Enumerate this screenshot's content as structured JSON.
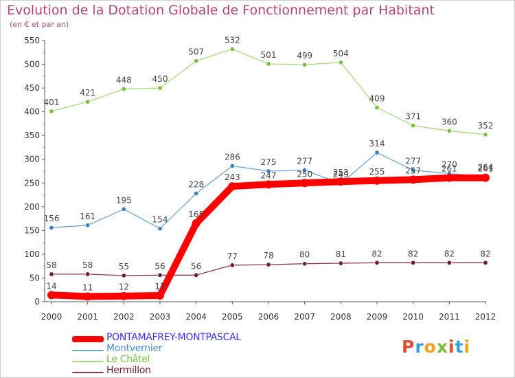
{
  "header": {
    "title": "Evolution de la Dotation Globale de Fonctionnement par Habitant",
    "subtitle": "(en € et par an)"
  },
  "logo": {
    "letters": [
      "P",
      "r",
      "o",
      "x",
      "i",
      "t",
      "i"
    ],
    "colors": [
      "#e34a2e",
      "#3a9fd8",
      "#f4a21b",
      "#7bbf3a",
      "#e34a2e",
      "#3a9fd8",
      "#f4a21b"
    ]
  },
  "chart_data": {
    "type": "line",
    "title": "Evolution de la Dotation Globale de Fonctionnement par Habitant",
    "subtitle": "(en € et par an)",
    "xlabel": "",
    "ylabel": "",
    "x": [
      "2000",
      "2001",
      "2002",
      "2003",
      "2004",
      "2005",
      "2006",
      "2007",
      "2008",
      "2009",
      "2010",
      "2011",
      "2012"
    ],
    "ylim": [
      0,
      550
    ],
    "yticks": [
      0,
      50,
      100,
      150,
      200,
      250,
      300,
      350,
      400,
      450,
      500,
      550
    ],
    "grid": false,
    "legend_position": "bottom-left",
    "series": [
      {
        "name": "PONTAMAFREY-MONTPASCAL",
        "color": "#ff0000",
        "marker": "#ff0000",
        "label_color": "#3333ff",
        "weight": "heavy",
        "values": [
          14,
          11,
          12,
          13,
          165,
          243,
          247,
          250,
          253,
          255,
          257,
          261,
          261
        ]
      },
      {
        "name": "Montvernier",
        "color": "#6aa5d8",
        "marker": "#3c82c8",
        "label_color": "#4a8fd1",
        "weight": "light",
        "values": [
          156,
          161,
          195,
          154,
          228,
          286,
          275,
          277,
          249,
          314,
          277,
          270,
          264
        ]
      },
      {
        "name": "Le Châtel",
        "color": "#a6da7a",
        "marker": "#7cc242",
        "label_color": "#6fbf3f",
        "weight": "light",
        "values": [
          401,
          421,
          448,
          450,
          507,
          532,
          501,
          499,
          504,
          409,
          371,
          360,
          352
        ]
      },
      {
        "name": "Hermillon",
        "color": "#8a3a44",
        "marker": "#6e2030",
        "label_color": "#6e2030",
        "weight": "light",
        "values": [
          58,
          58,
          55,
          56,
          56,
          77,
          78,
          80,
          81,
          82,
          82,
          82,
          82
        ]
      }
    ]
  }
}
